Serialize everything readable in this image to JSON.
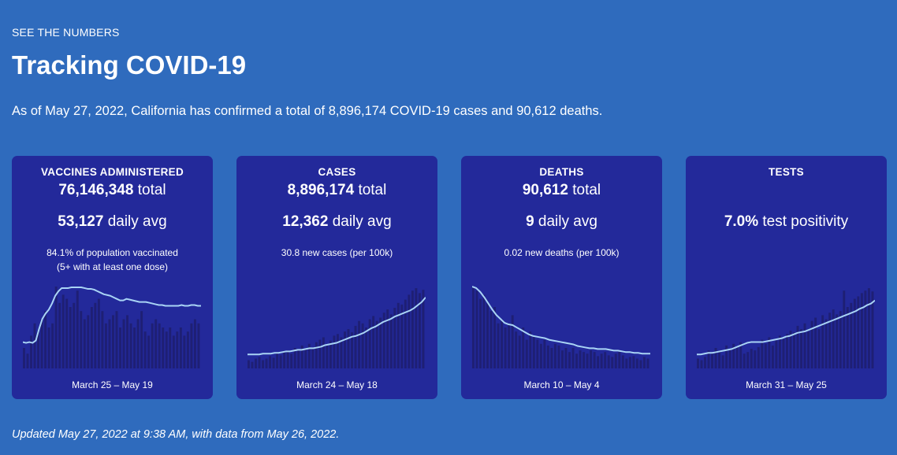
{
  "header": {
    "eyebrow": "SEE THE NUMBERS",
    "title": "Tracking COVID-19",
    "intro": "As of May 27, 2022, California has confirmed a total of 8,896,174 COVID-19 cases and 90,612 deaths."
  },
  "footer": {
    "updated": "Updated May 27, 2022 at 9:38 AM, with data from May 26, 2022."
  },
  "colors": {
    "background": "#2f6bbd",
    "card": "#23299a",
    "bar": "#1e1f74",
    "line": "#a9d4f5"
  },
  "cards": [
    {
      "title": "VACCINES ADMINISTERED",
      "total_value": "76,146,348",
      "total_unit": "total",
      "daily_value": "53,127",
      "daily_unit": "daily avg",
      "note_line1": "84.1% of population vaccinated",
      "note_line2": "(5+ with at least one dose)",
      "date_range": "March 25 – May 19"
    },
    {
      "title": "CASES",
      "total_value": "8,896,174",
      "total_unit": "total",
      "daily_value": "12,362",
      "daily_unit": "daily avg",
      "note_line1": "30.8 new cases (per 100k)",
      "note_line2": "",
      "date_range": "March 24 – May 18"
    },
    {
      "title": "DEATHS",
      "total_value": "90,612",
      "total_unit": "total",
      "daily_value": "9",
      "daily_unit": "daily avg",
      "note_line1": "0.02 new deaths (per 100k)",
      "note_line2": "",
      "date_range": "March 10 – May 4"
    },
    {
      "title": "TESTS",
      "total_value": "",
      "total_unit": "",
      "daily_value": "7.0%",
      "daily_unit": "test positivity",
      "note_line1": "",
      "note_line2": "",
      "date_range": "March 31 – May 25"
    }
  ],
  "chart_data": [
    {
      "type": "bar",
      "title": "Vaccines administered",
      "max": 100,
      "values": [
        25,
        18,
        40,
        55,
        45,
        60,
        70,
        50,
        55,
        100,
        80,
        90,
        85,
        75,
        80,
        95,
        70,
        60,
        65,
        75,
        80,
        85,
        70,
        55,
        60,
        65,
        70,
        50,
        60,
        65,
        55,
        50,
        60,
        70,
        45,
        40,
        55,
        60,
        55,
        50,
        45,
        50,
        40,
        45,
        50,
        40,
        45,
        55,
        60,
        55
      ],
      "trend": [
        28,
        27,
        28,
        27,
        30,
        45,
        58,
        65,
        70,
        78,
        88,
        94,
        98,
        98,
        98,
        99,
        99,
        99,
        99,
        98,
        97,
        97,
        96,
        94,
        92,
        90,
        89,
        88,
        86,
        84,
        82,
        82,
        84,
        83,
        82,
        81,
        80,
        80,
        80,
        79,
        78,
        77,
        76,
        76,
        75,
        75,
        75,
        75,
        75,
        76,
        75,
        75,
        76,
        76,
        75,
        75
      ]
    },
    {
      "type": "bar",
      "title": "Cases",
      "max": 100,
      "values": [
        10,
        8,
        12,
        14,
        10,
        12,
        15,
        13,
        18,
        16,
        20,
        22,
        18,
        25,
        23,
        28,
        24,
        30,
        26,
        32,
        35,
        38,
        30,
        34,
        40,
        42,
        38,
        45,
        48,
        44,
        52,
        58,
        55,
        50,
        60,
        64,
        58,
        62,
        68,
        72,
        66,
        74,
        80,
        78,
        84,
        90,
        95,
        98,
        92,
        96
      ],
      "trend": [
        12,
        12,
        12,
        12,
        13,
        13,
        13,
        14,
        14,
        15,
        16,
        16,
        17,
        18,
        18,
        19,
        20,
        20,
        21,
        22,
        24,
        25,
        26,
        27,
        29,
        31,
        33,
        35,
        36,
        38,
        40,
        43,
        46,
        48,
        51,
        54,
        56,
        58,
        61,
        63,
        65,
        67,
        69,
        72,
        76,
        80,
        86
      ]
    },
    {
      "type": "bar",
      "title": "Deaths",
      "max": 100,
      "values": [
        100,
        95,
        85,
        90,
        80,
        70,
        75,
        55,
        60,
        50,
        55,
        65,
        45,
        40,
        50,
        35,
        45,
        40,
        35,
        30,
        35,
        28,
        25,
        30,
        28,
        22,
        25,
        20,
        25,
        18,
        22,
        20,
        18,
        22,
        20,
        15,
        18,
        20,
        16,
        14,
        18,
        20,
        16,
        12,
        14,
        15,
        12,
        10,
        14,
        12
      ],
      "trend": [
        100,
        98,
        93,
        86,
        78,
        70,
        63,
        58,
        53,
        51,
        50,
        47,
        44,
        41,
        38,
        36,
        35,
        34,
        33,
        31,
        30,
        29,
        28,
        27,
        26,
        25,
        23,
        22,
        21,
        20,
        20,
        19,
        19,
        19,
        18,
        17,
        17,
        16,
        15,
        15,
        14,
        14,
        13,
        13,
        13
      ]
    },
    {
      "type": "bar",
      "title": "Tests",
      "max": 100,
      "values": [
        12,
        10,
        14,
        22,
        18,
        25,
        20,
        16,
        28,
        24,
        30,
        26,
        32,
        18,
        20,
        24,
        22,
        26,
        35,
        30,
        38,
        28,
        34,
        40,
        36,
        42,
        46,
        44,
        52,
        48,
        55,
        45,
        58,
        62,
        48,
        65,
        60,
        68,
        72,
        66,
        70,
        95,
        75,
        80,
        85,
        88,
        92,
        95,
        98,
        94
      ],
      "trend": [
        12,
        12,
        13,
        14,
        14,
        15,
        16,
        17,
        18,
        19,
        21,
        23,
        25,
        27,
        28,
        28,
        28,
        28,
        29,
        30,
        31,
        32,
        33,
        35,
        36,
        38,
        40,
        41,
        42,
        44,
        46,
        48,
        50,
        52,
        54,
        56,
        58,
        60,
        62,
        64,
        66,
        68,
        71,
        73,
        76,
        78,
        82
      ]
    }
  ]
}
